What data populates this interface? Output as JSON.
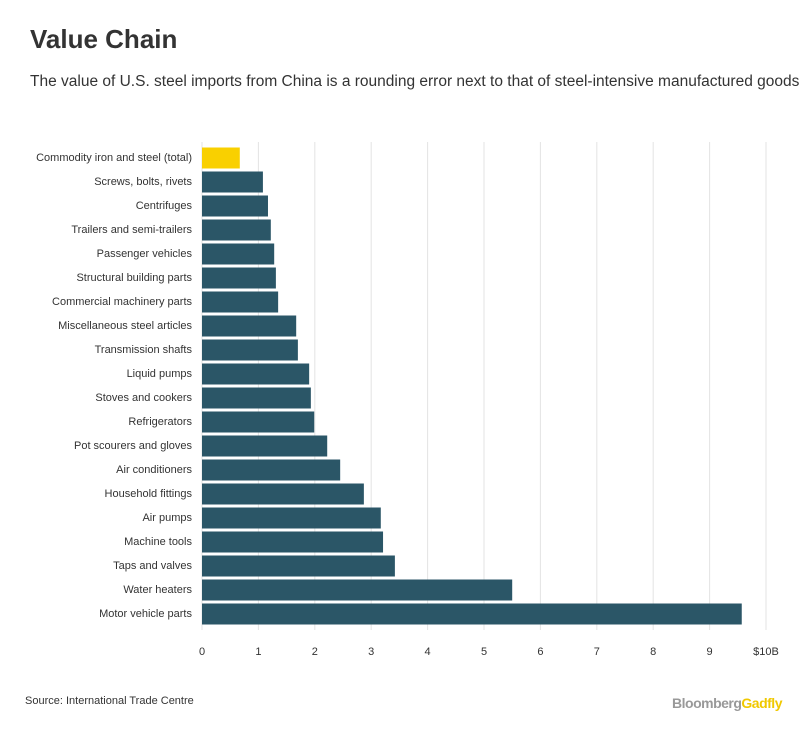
{
  "chart_data": {
    "type": "barh",
    "title": "Value Chain",
    "subtitle": "The value of U.S. steel imports from China is a rounding error next to that of steel-intensive manufactured goods",
    "categories": [
      "Commodity iron and steel (total)",
      "Screws, bolts, rivets",
      "Centrifuges",
      "Trailers and semi-trailers",
      "Passenger vehicles",
      "Structural building parts",
      "Commercial machinery parts",
      "Miscellaneous steel articles",
      "Transmission shafts",
      "Liquid pumps",
      "Stoves and cookers",
      "Refrigerators",
      "Pot scourers and gloves",
      "Air conditioners",
      "Household fittings",
      "Air pumps",
      "Machine tools",
      "Taps and valves",
      "Water heaters",
      "Motor vehicle parts"
    ],
    "values": [
      0.67,
      1.08,
      1.17,
      1.22,
      1.28,
      1.31,
      1.35,
      1.67,
      1.7,
      1.9,
      1.93,
      1.99,
      2.22,
      2.45,
      2.87,
      3.17,
      3.21,
      3.42,
      5.5,
      9.57
    ],
    "colors": [
      "#f9d000",
      "#2b5667",
      "#2b5667",
      "#2b5667",
      "#2b5667",
      "#2b5667",
      "#2b5667",
      "#2b5667",
      "#2b5667",
      "#2b5667",
      "#2b5667",
      "#2b5667",
      "#2b5667",
      "#2b5667",
      "#2b5667",
      "#2b5667",
      "#2b5667",
      "#2b5667",
      "#2b5667",
      "#2b5667"
    ],
    "xlim": [
      0,
      10
    ],
    "xticks": [
      0,
      1,
      2,
      3,
      4,
      5,
      6,
      7,
      8,
      9,
      {
        "value": 10,
        "label": "$10B"
      }
    ],
    "grid": true,
    "source": "Source: International Trade Centre",
    "brand": [
      "Bloomberg",
      "Gadfly"
    ]
  }
}
